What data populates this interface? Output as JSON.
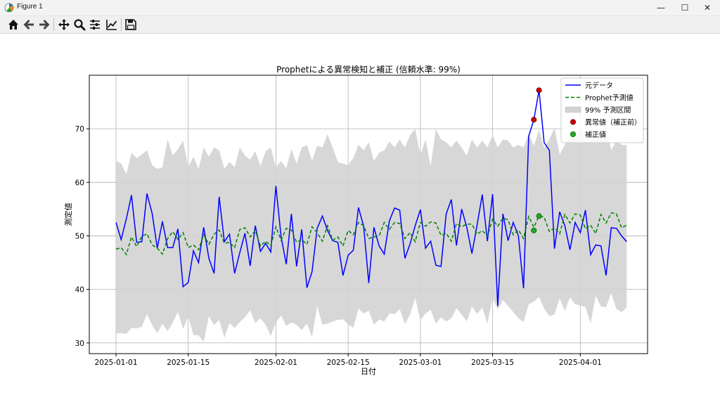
{
  "window": {
    "title": "Figure 1",
    "buttons": {
      "minimize": "—",
      "maximize": "☐",
      "close": "✕"
    }
  },
  "toolbar": {
    "tools": [
      "home-icon",
      "back-icon",
      "forward-icon",
      "pan-icon",
      "zoom-icon",
      "subplots-icon",
      "edit-axes-icon",
      "save-icon"
    ]
  },
  "chart_data": {
    "type": "line",
    "title": "Prophetによる異常検知と補正 (信頼水準: 99%)",
    "xlabel": "日付",
    "ylabel": "測定値",
    "x_start": "2025-01-01",
    "x_end": "2025-04-09",
    "ylim": [
      28,
      80
    ],
    "yticks": [
      30,
      40,
      50,
      60,
      70
    ],
    "xticks": [
      {
        "date": "2025-01-01",
        "label": "2025-01-01"
      },
      {
        "date": "2025-01-15",
        "label": "2025-01-15"
      },
      {
        "date": "2025-02-01",
        "label": "2025-02-01"
      },
      {
        "date": "2025-02-15",
        "label": "2025-02-15"
      },
      {
        "date": "2025-03-01",
        "label": "2025-03-01"
      },
      {
        "date": "2025-03-15",
        "label": "2025-03-15"
      },
      {
        "date": "2025-04-01",
        "label": "2025-04-01"
      }
    ],
    "grid": true,
    "legend_position": "top-right",
    "colors": {
      "original": "#0000ff",
      "predicted": "#008000",
      "band": "#d3d3d3",
      "anomaly": "#cc0000",
      "corrected": "#22aa22"
    },
    "legend": [
      {
        "label": "元データ",
        "kind": "line"
      },
      {
        "label": "Prophet予測値",
        "kind": "dashed"
      },
      {
        "label": "99% 予測区間",
        "kind": "band"
      },
      {
        "label": "異常値（補正前）",
        "kind": "anomaly"
      },
      {
        "label": "補正値",
        "kind": "corrected"
      }
    ],
    "series": [
      {
        "name": "元データ",
        "values": [
          52.5,
          49.3,
          53.2,
          57.6,
          48.8,
          48.9,
          57.9,
          54.2,
          47.7,
          52.7,
          47.8,
          47.8,
          51.3,
          40.5,
          41.3,
          47.2,
          45.0,
          51.6,
          45.8,
          43.0,
          57.3,
          48.9,
          50.3,
          43.0,
          46.9,
          50.5,
          44.4,
          51.9,
          47.1,
          48.6,
          47.0,
          59.3,
          49.8,
          44.7,
          54.1,
          44.3,
          51.2,
          40.3,
          43.3,
          51.4,
          53.7,
          51.0,
          49.1,
          48.8,
          42.6,
          46.4,
          47.3,
          55.3,
          51.8,
          41.2,
          51.6,
          48.1,
          46.6,
          52.8,
          55.2,
          54.8,
          45.8,
          48.5,
          51.9,
          54.9,
          47.7,
          49.0,
          44.5,
          44.3,
          54.1,
          56.8,
          48.2,
          55.0,
          51.6,
          46.7,
          52.1,
          57.7,
          49.0,
          57.8,
          36.9,
          54.1,
          49.1,
          52.5,
          50.0,
          40.2,
          68.6,
          71.7,
          77.2,
          67.4,
          66.0,
          47.6,
          54.5,
          51.9,
          47.4,
          52.5,
          50.6,
          54.8,
          46.5,
          48.3,
          48.1,
          42.6,
          51.5,
          51.4,
          50.0,
          48.9
        ]
      },
      {
        "name": "Prophet予測値",
        "values": [
          47.5,
          47.8,
          46.5,
          49.8,
          48.0,
          49.9,
          50.4,
          48.3,
          47.7,
          46.6,
          49.5,
          50.8,
          49.3,
          50.6,
          47.8,
          48.3,
          47.4,
          50.2,
          48.4,
          50.3,
          51.1,
          48.6,
          48.8,
          47.8,
          51.2,
          51.5,
          49.8,
          51.0,
          48.1,
          49.0,
          48.2,
          51.7,
          49.2,
          51.4,
          51.1,
          48.8,
          49.3,
          48.4,
          51.7,
          50.6,
          49.0,
          51.9,
          49.2,
          49.8,
          48.1,
          51.0,
          50.2,
          52.5,
          51.9,
          49.5,
          49.8,
          50.0,
          52.5,
          51.2,
          52.5,
          52.3,
          49.5,
          50.6,
          48.9,
          52.5,
          51.8,
          52.6,
          52.4,
          50.1,
          50.5,
          49.0,
          52.3,
          51.7,
          52.2,
          52.2,
          50.3,
          51.0,
          49.9,
          53.1,
          51.8,
          53.3,
          53.0,
          50.2,
          51.1,
          49.5,
          53.6,
          51.6,
          53.7,
          53.5,
          50.8,
          51.5,
          50.4,
          54.0,
          52.4,
          54.1,
          53.9,
          51.3,
          52.0,
          50.4,
          54.0,
          52.4,
          54.3,
          54.1,
          51.5,
          52.0
        ]
      },
      {
        "name": "99% 予測区間 上限",
        "values": [
          64.0,
          63.5,
          61.5,
          65.5,
          64.5,
          65.2,
          66.0,
          63.2,
          62.5,
          62.8,
          68.0,
          65.0,
          66.2,
          67.8,
          62.8,
          64.8,
          62.5,
          66.5,
          64.8,
          66.5,
          66.0,
          62.5,
          63.8,
          62.8,
          66.5,
          65.0,
          64.2,
          65.8,
          63.0,
          65.8,
          66.5,
          62.8,
          64.0,
          62.6,
          66.2,
          63.5,
          66.5,
          67.0,
          64.0,
          66.8,
          66.5,
          69.0,
          66.5,
          63.8,
          63.5,
          63.2,
          64.5,
          67.0,
          66.0,
          67.5,
          64.0,
          65.5,
          66.0,
          67.6,
          66.5,
          68.0,
          66.5,
          68.8,
          70.0,
          65.0,
          68.0,
          63.0,
          70.0,
          68.0,
          67.5,
          66.5,
          67.8,
          66.5,
          65.0,
          68.0,
          66.5,
          67.8,
          66.5,
          68.8,
          66.5,
          68.0,
          67.8,
          66.5,
          67.0,
          66.5,
          69.0,
          66.8,
          69.8,
          66.5,
          68.0,
          70.2,
          65.2,
          67.0,
          68.5,
          68.0,
          70.0,
          68.8,
          68.2,
          70.0,
          68.5,
          70.8,
          66.0,
          67.8,
          67.0,
          67.0
        ]
      },
      {
        "name": "99% 予測区間 下限",
        "values": [
          31.8,
          31.8,
          31.7,
          32.8,
          32.7,
          33.0,
          35.4,
          33.3,
          31.8,
          33.6,
          32.2,
          33.8,
          35.8,
          32.6,
          34.9,
          31.5,
          31.4,
          30.2,
          35.0,
          33.3,
          34.3,
          31.0,
          33.7,
          32.8,
          33.9,
          34.8,
          36.1,
          33.7,
          34.6,
          33.4,
          31.3,
          33.8,
          35.1,
          33.2,
          33.8,
          33.4,
          32.4,
          33.6,
          31.1,
          36.9,
          33.4,
          33.6,
          34.0,
          34.3,
          34.4,
          33.5,
          32.8,
          36.4,
          35.5,
          36.0,
          33.4,
          34.4,
          34.0,
          35.5,
          35.4,
          36.3,
          33.5,
          35.3,
          38.4,
          34.2,
          35.5,
          36.2,
          33.6,
          34.8,
          34.0,
          34.6,
          36.5,
          35.3,
          34.0,
          36.8,
          35.4,
          36.6,
          33.6,
          38.4,
          36.2,
          38.0,
          36.9,
          35.8,
          34.6,
          33.9,
          37.2,
          37.7,
          38.6,
          36.4,
          35.0,
          35.3,
          38.3,
          36.0,
          38.5,
          37.2,
          37.0,
          36.7,
          33.7,
          38.8,
          36.8,
          36.7,
          39.3,
          36.3,
          35.8,
          36.6
        ]
      },
      {
        "name": "異常値（補正前）",
        "points": [
          {
            "date": "2025-03-23",
            "value": 71.7
          },
          {
            "date": "2025-03-24",
            "value": 77.2
          }
        ]
      },
      {
        "name": "補正値",
        "points": [
          {
            "date": "2025-03-23",
            "value": 51.0
          },
          {
            "date": "2025-03-24",
            "value": 53.7
          }
        ]
      }
    ]
  }
}
